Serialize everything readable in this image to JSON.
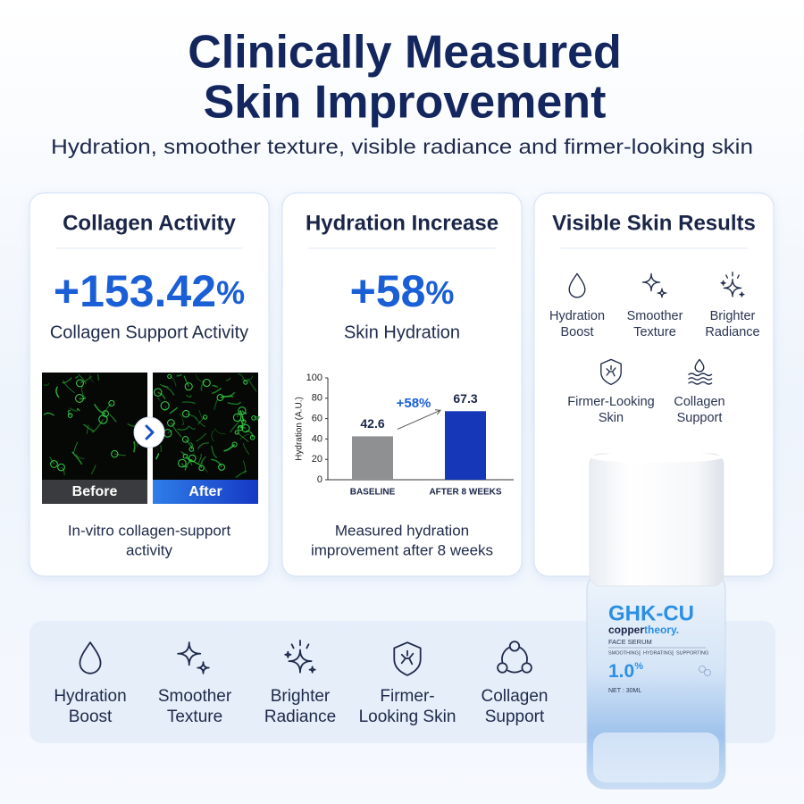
{
  "header": {
    "title_lines": [
      "Clinically Measured",
      "Skin Improvement"
    ],
    "subtitle": "Hydration, smoother texture, visible radiance and firmer-looking skin"
  },
  "cards": [
    {
      "title": "Collagen Activity",
      "stat_value": "+153.42",
      "stat_unit": "%",
      "stat_label": "Collagen Support Activity",
      "image_labels": [
        "Before",
        "After"
      ],
      "caption_lines": [
        "In-vitro collagen-support",
        "activity"
      ]
    },
    {
      "title": "Hydration Increase",
      "stat_value": "+58",
      "stat_unit": "%",
      "stat_label": "Skin Hydration",
      "caption_lines": [
        "Measured hydration",
        "improvement after 8 weeks"
      ]
    },
    {
      "title": "Visible Skin Results",
      "items": [
        [
          "Hydration",
          "Boost"
        ],
        [
          "Smoother",
          "Texture"
        ],
        [
          "Brighter",
          "Radiance"
        ],
        [
          "Firmer-Looking",
          "Skin"
        ],
        [
          "Collagen",
          "Support"
        ]
      ]
    }
  ],
  "chart_data": {
    "type": "bar",
    "y_label": "Hydration (A.U.)",
    "categories": [
      "BASELINE",
      "AFTER 8 WEEKS"
    ],
    "values": [
      42.6,
      67.3
    ],
    "colors": [
      "#8f9092",
      "#1637b8"
    ],
    "ylim": [
      0,
      100
    ],
    "yticks": [
      0,
      20,
      40,
      60,
      80,
      100
    ],
    "annotation": "+58%"
  },
  "benefits": [
    [
      "Hydration",
      "Boost"
    ],
    [
      "Smoother",
      "Texture"
    ],
    [
      "Brighter",
      "Radiance"
    ],
    [
      "Firmer-",
      "Looking Skin"
    ],
    [
      "Collagen",
      "Support"
    ]
  ],
  "product": {
    "name": "GHK-CU",
    "brand_parts": [
      "copper",
      "theory."
    ],
    "type": "FACE SERUM",
    "claims": [
      "SMOOTHING",
      "HYDRATING",
      "SUPPORTING"
    ],
    "strength_value": "1.0",
    "strength_unit": "%",
    "net": "NET : 30ML"
  }
}
